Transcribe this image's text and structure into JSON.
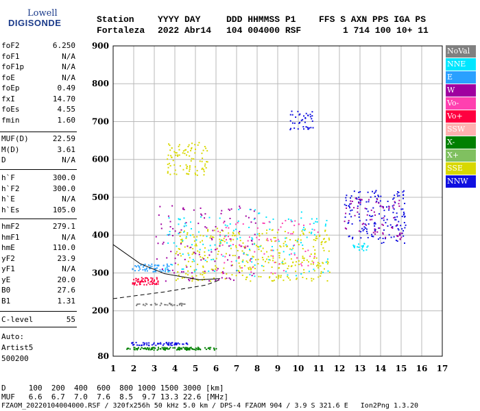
{
  "logo": {
    "line1": "Lowell",
    "line2": "DIGISONDE"
  },
  "header": {
    "row1": [
      "Station",
      "YYYY DAY",
      "DDD HHMMSS P1",
      "FFS S AXN PPS IGA PS"
    ],
    "row2": [
      "Fortaleza",
      "2022 Abr14",
      "104 004000 RSF",
      "1 714 100 10+ 11"
    ]
  },
  "params": {
    "group1": [
      {
        "k": "foF2",
        "v": "6.250"
      },
      {
        "k": "foF1",
        "v": "N/A"
      },
      {
        "k": "foF1p",
        "v": "N/A"
      },
      {
        "k": "foE",
        "v": "N/A"
      },
      {
        "k": "foEp",
        "v": "0.49"
      },
      {
        "k": "fxI",
        "v": "14.70"
      },
      {
        "k": "foEs",
        "v": "4.55"
      },
      {
        "k": "fmin",
        "v": "1.60"
      }
    ],
    "group2": [
      {
        "k": "MUF(D)",
        "v": "22.59"
      },
      {
        "k": "M(D)",
        "v": "3.61"
      },
      {
        "k": "D",
        "v": "N/A"
      }
    ],
    "group3": [
      {
        "k": "h`F",
        "v": "300.0"
      },
      {
        "k": "h`F2",
        "v": "300.0"
      },
      {
        "k": "h`E",
        "v": "N/A"
      },
      {
        "k": "h`Es",
        "v": "105.0"
      }
    ],
    "group4": [
      {
        "k": "hmF2",
        "v": "279.1"
      },
      {
        "k": "hmF1",
        "v": "N/A"
      },
      {
        "k": "hmE",
        "v": "110.0"
      },
      {
        "k": "yF2",
        "v": "23.9"
      },
      {
        "k": "yF1",
        "v": "N/A"
      },
      {
        "k": "yE",
        "v": "20.0"
      },
      {
        "k": "B0",
        "v": "27.6"
      },
      {
        "k": "B1",
        "v": "1.31"
      }
    ],
    "group5": [
      {
        "k": "C-level",
        "v": "55"
      }
    ],
    "auto": [
      "Auto:",
      "Artist5",
      "500200"
    ]
  },
  "legend": [
    {
      "label": "NoVal",
      "color": "#808080"
    },
    {
      "label": "NNE",
      "color": "#00e6ff"
    },
    {
      "label": "E",
      "color": "#2aa0ff"
    },
    {
      "label": "W",
      "color": "#a000a0"
    },
    {
      "label": "Vo-",
      "color": "#ff40b0"
    },
    {
      "label": "Vo+",
      "color": "#ff0040"
    },
    {
      "label": "SSW",
      "color": "#ffb0b0"
    },
    {
      "label": "X-",
      "color": "#008000"
    },
    {
      "label": "X+",
      "color": "#80c060"
    },
    {
      "label": "SSE",
      "color": "#d8d800"
    },
    {
      "label": "NNW",
      "color": "#1010e0"
    }
  ],
  "footer": {
    "d_row": "D     100  200  400  600  800 1000 1500 3000 [km]",
    "muf_row": "MUF   6.6  6.7  7.0  7.6  8.5  9.7 13.3 22.6 [MHz]",
    "file_row": "FZAOM_20220104004000.RSF / 320fx256h 50 kHz 5.0 km / DPS-4 FZAOM 904 / 3.9 S 321.6 E   Ion2Png 1.3.20"
  },
  "chart_data": {
    "type": "scatter",
    "x_ticks": [
      1,
      2,
      3,
      4,
      5,
      6,
      7,
      8,
      9,
      10,
      11,
      12,
      13,
      14,
      15,
      16,
      17
    ],
    "y_ticks": [
      80,
      200,
      300,
      400,
      500,
      600,
      700,
      800,
      900
    ],
    "xlim": [
      1,
      17
    ],
    "ylim": [
      80,
      900
    ],
    "grid": true,
    "clusters": [
      {
        "color": "#008000",
        "x": [
          1.6,
          6.0
        ],
        "y": [
          98,
          105
        ],
        "n": 120
      },
      {
        "color": "#1010e0",
        "x": [
          1.8,
          4.6
        ],
        "y": [
          110,
          118
        ],
        "n": 60
      },
      {
        "color": "#ff0040",
        "x": [
          1.9,
          3.2
        ],
        "y": [
          270,
          290
        ],
        "n": 60
      },
      {
        "color": "#2aa0ff",
        "x": [
          1.9,
          3.8
        ],
        "y": [
          305,
          325
        ],
        "n": 60
      },
      {
        "color": "#808080",
        "x": [
          1.9,
          4.5
        ],
        "y": [
          215,
          222
        ],
        "n": 40
      },
      {
        "color": "#d8d800",
        "x": [
          3.6,
          5.6
        ],
        "y": [
          560,
          650
        ],
        "n": 90
      },
      {
        "color": "#d8d800",
        "x": [
          4.0,
          11.5
        ],
        "y": [
          280,
          420
        ],
        "n": 350
      },
      {
        "color": "#a000a0",
        "x": [
          3.0,
          8.0
        ],
        "y": [
          280,
          480
        ],
        "n": 120
      },
      {
        "color": "#00e6ff",
        "x": [
          3.5,
          11.5
        ],
        "y": [
          290,
          470
        ],
        "n": 140
      },
      {
        "color": "#ff40b0",
        "x": [
          6.0,
          11.0
        ],
        "y": [
          300,
          440
        ],
        "n": 80
      },
      {
        "color": "#1010e0",
        "x": [
          9.5,
          10.7
        ],
        "y": [
          680,
          730
        ],
        "n": 40
      },
      {
        "color": "#1010e0",
        "x": [
          12.2,
          15.2
        ],
        "y": [
          380,
          520
        ],
        "n": 160
      },
      {
        "color": "#a000a0",
        "x": [
          12.2,
          15.0
        ],
        "y": [
          390,
          500
        ],
        "n": 70
      },
      {
        "color": "#00e6ff",
        "x": [
          12.5,
          13.5
        ],
        "y": [
          360,
          380
        ],
        "n": 20
      }
    ],
    "traces": [
      {
        "style": "solid",
        "points": [
          [
            1.0,
            375
          ],
          [
            2.3,
            325
          ],
          [
            3.5,
            298
          ],
          [
            5.2,
            282
          ],
          [
            6.2,
            285
          ]
        ]
      },
      {
        "style": "dashed",
        "points": [
          [
            1.0,
            232
          ],
          [
            3.5,
            250
          ],
          [
            5.5,
            268
          ],
          [
            6.2,
            282
          ]
        ]
      }
    ]
  }
}
